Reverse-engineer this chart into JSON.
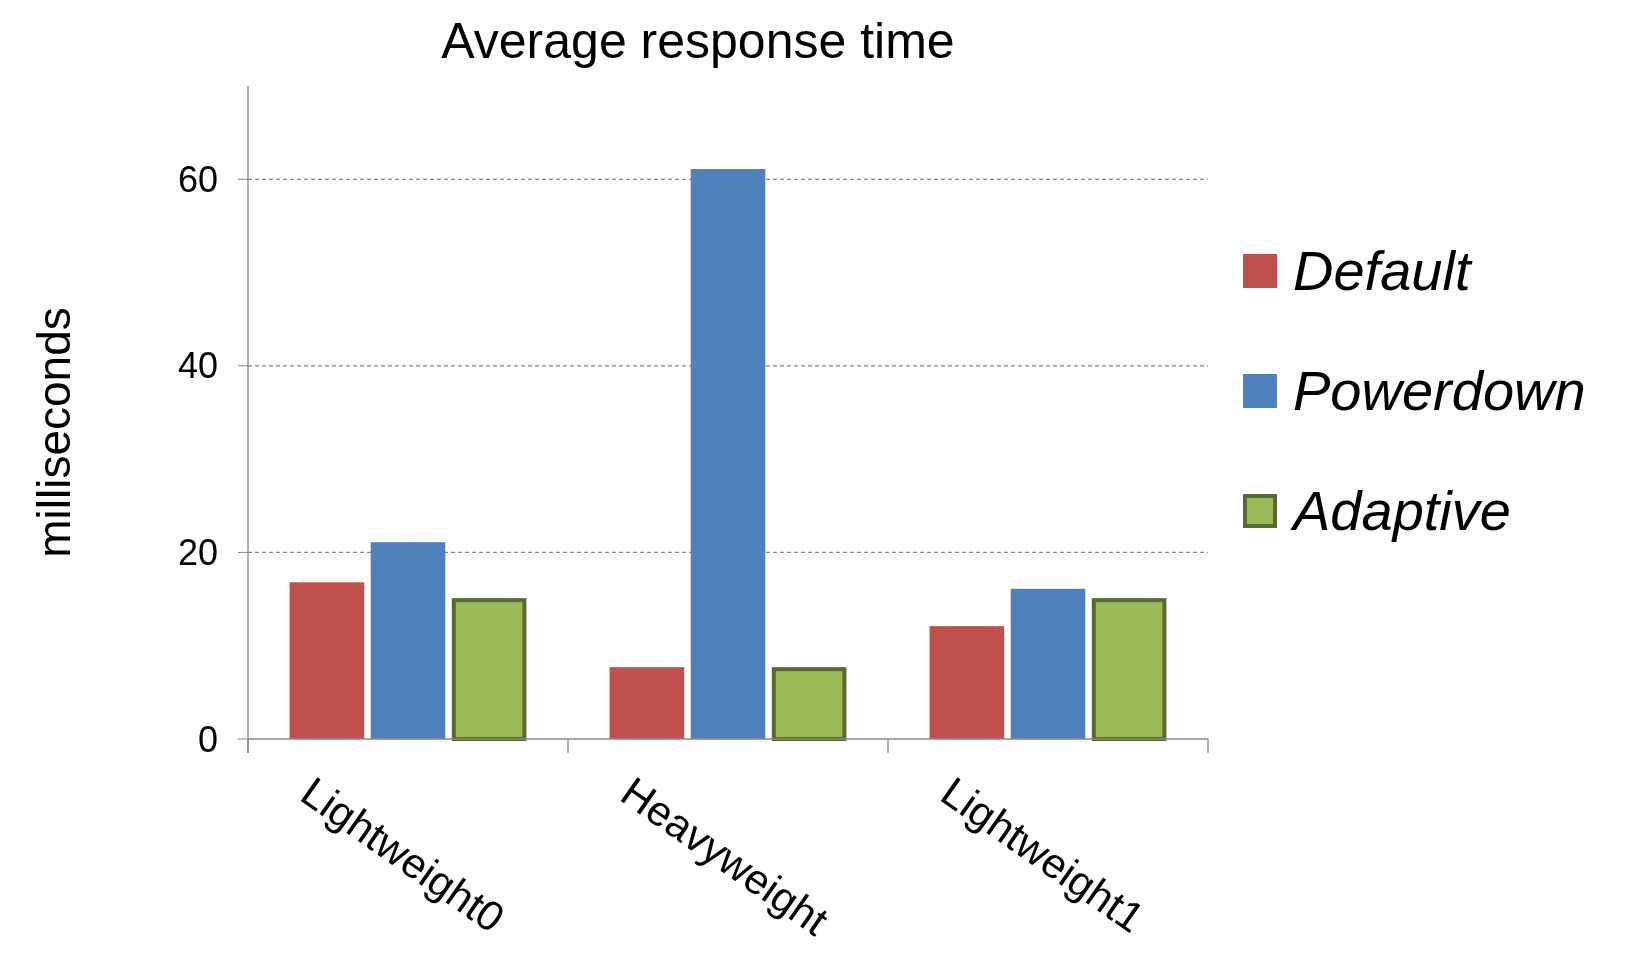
{
  "chart_data": {
    "type": "bar",
    "title": "Average response time",
    "ylabel": "milliseconds",
    "categories": [
      "Lightweight0",
      "Heavyweight",
      "Lightweight1"
    ],
    "series": [
      {
        "name": "Default",
        "color": "#c0504d",
        "values": [
          16.8,
          7.7,
          12.1
        ]
      },
      {
        "name": "Powerdown",
        "color": "#4f81bd",
        "values": [
          21.1,
          61.1,
          16.1
        ]
      },
      {
        "name": "Adaptive",
        "color": "#9bbb59",
        "values": [
          15.1,
          7.7,
          15.1
        ]
      }
    ],
    "ylim": [
      0,
      70
    ],
    "yticks": [
      0,
      20,
      40,
      60
    ],
    "grid": "y",
    "legend": "right"
  }
}
